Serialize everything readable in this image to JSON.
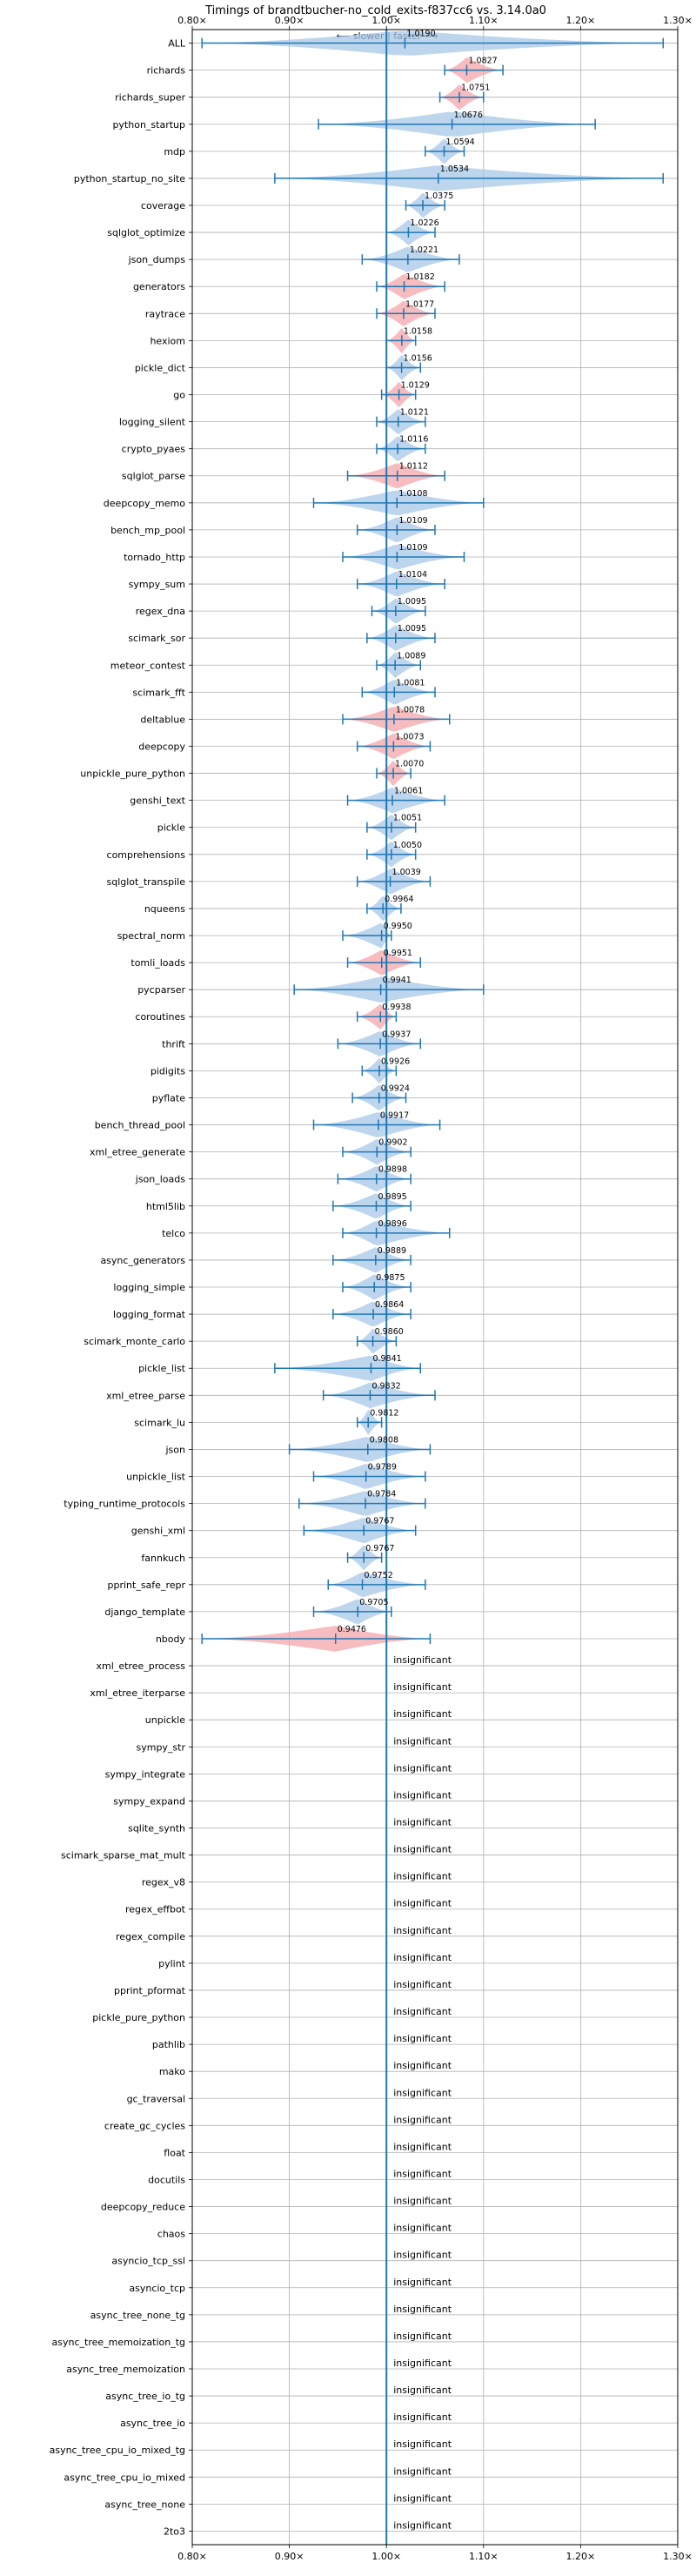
{
  "chart_data": {
    "type": "violin",
    "title": "Timings of brandtbucher-no_cold_exits-f837cc6 vs. 3.14.0a0",
    "direction_label": "⟵ slower | faster ⟶",
    "xlim": [
      0.8,
      1.3
    ],
    "xticks": [
      0.8,
      0.9,
      1.0,
      1.1,
      1.2,
      1.3
    ],
    "xtick_labels": [
      "0.80×",
      "0.90×",
      "1.00×",
      "1.10×",
      "1.20×",
      "1.30×"
    ],
    "reference_line": 1.0,
    "grid": true,
    "colors": {
      "faster": "#a7c7e7",
      "slower": "#f4a6a9",
      "line": "#1f77b4"
    },
    "insignificant_label": "insignificant",
    "benchmarks": [
      {
        "name": "ALL",
        "value": 1.019,
        "label": "1.0190",
        "low": 0.81,
        "high": 1.285,
        "color": "faster"
      },
      {
        "name": "richards",
        "value": 1.0827,
        "label": "1.0827",
        "low": 1.06,
        "high": 1.12,
        "color": "slower"
      },
      {
        "name": "richards_super",
        "value": 1.0751,
        "label": "1.0751",
        "low": 1.055,
        "high": 1.1,
        "color": "slower"
      },
      {
        "name": "python_startup",
        "value": 1.0676,
        "label": "1.0676",
        "low": 0.93,
        "high": 1.215,
        "color": "faster"
      },
      {
        "name": "mdp",
        "value": 1.0594,
        "label": "1.0594",
        "low": 1.04,
        "high": 1.08,
        "color": "faster"
      },
      {
        "name": "python_startup_no_site",
        "value": 1.0534,
        "label": "1.0534",
        "low": 0.885,
        "high": 1.285,
        "color": "faster"
      },
      {
        "name": "coverage",
        "value": 1.0375,
        "label": "1.0375",
        "low": 1.02,
        "high": 1.06,
        "color": "faster"
      },
      {
        "name": "sqlglot_optimize",
        "value": 1.0226,
        "label": "1.0226",
        "low": 1.0,
        "high": 1.05,
        "color": "faster"
      },
      {
        "name": "json_dumps",
        "value": 1.0221,
        "label": "1.0221",
        "low": 0.975,
        "high": 1.075,
        "color": "faster"
      },
      {
        "name": "generators",
        "value": 1.0182,
        "label": "1.0182",
        "low": 0.99,
        "high": 1.06,
        "color": "slower"
      },
      {
        "name": "raytrace",
        "value": 1.0177,
        "label": "1.0177",
        "low": 0.99,
        "high": 1.05,
        "color": "slower"
      },
      {
        "name": "hexiom",
        "value": 1.0158,
        "label": "1.0158",
        "low": 1.0,
        "high": 1.03,
        "color": "slower"
      },
      {
        "name": "pickle_dict",
        "value": 1.0156,
        "label": "1.0156",
        "low": 1.0,
        "high": 1.035,
        "color": "faster"
      },
      {
        "name": "go",
        "value": 1.0129,
        "label": "1.0129",
        "low": 0.995,
        "high": 1.03,
        "color": "slower"
      },
      {
        "name": "logging_silent",
        "value": 1.0121,
        "label": "1.0121",
        "low": 0.99,
        "high": 1.04,
        "color": "faster"
      },
      {
        "name": "crypto_pyaes",
        "value": 1.0116,
        "label": "1.0116",
        "low": 0.99,
        "high": 1.04,
        "color": "faster"
      },
      {
        "name": "sqlglot_parse",
        "value": 1.0112,
        "label": "1.0112",
        "low": 0.96,
        "high": 1.06,
        "color": "slower"
      },
      {
        "name": "deepcopy_memo",
        "value": 1.0108,
        "label": "1.0108",
        "low": 0.925,
        "high": 1.1,
        "color": "faster"
      },
      {
        "name": "bench_mp_pool",
        "value": 1.0109,
        "label": "1.0109",
        "low": 0.97,
        "high": 1.05,
        "color": "faster"
      },
      {
        "name": "tornado_http",
        "value": 1.0109,
        "label": "1.0109",
        "low": 0.955,
        "high": 1.08,
        "color": "faster"
      },
      {
        "name": "sympy_sum",
        "value": 1.0104,
        "label": "1.0104",
        "low": 0.97,
        "high": 1.06,
        "color": "faster"
      },
      {
        "name": "regex_dna",
        "value": 1.0095,
        "label": "1.0095",
        "low": 0.985,
        "high": 1.04,
        "color": "faster"
      },
      {
        "name": "scimark_sor",
        "value": 1.0095,
        "label": "1.0095",
        "low": 0.98,
        "high": 1.05,
        "color": "faster"
      },
      {
        "name": "meteor_contest",
        "value": 1.0089,
        "label": "1.0089",
        "low": 0.99,
        "high": 1.035,
        "color": "faster"
      },
      {
        "name": "scimark_fft",
        "value": 1.0081,
        "label": "1.0081",
        "low": 0.975,
        "high": 1.05,
        "color": "faster"
      },
      {
        "name": "deltablue",
        "value": 1.0078,
        "label": "1.0078",
        "low": 0.955,
        "high": 1.065,
        "color": "slower"
      },
      {
        "name": "deepcopy",
        "value": 1.0073,
        "label": "1.0073",
        "low": 0.97,
        "high": 1.045,
        "color": "slower"
      },
      {
        "name": "unpickle_pure_python",
        "value": 1.007,
        "label": "1.0070",
        "low": 0.99,
        "high": 1.025,
        "color": "slower"
      },
      {
        "name": "genshi_text",
        "value": 1.0061,
        "label": "1.0061",
        "low": 0.96,
        "high": 1.06,
        "color": "faster"
      },
      {
        "name": "pickle",
        "value": 1.0051,
        "label": "1.0051",
        "low": 0.98,
        "high": 1.03,
        "color": "faster"
      },
      {
        "name": "comprehensions",
        "value": 1.005,
        "label": "1.0050",
        "low": 0.98,
        "high": 1.03,
        "color": "faster"
      },
      {
        "name": "sqlglot_transpile",
        "value": 1.0039,
        "label": "1.0039",
        "low": 0.97,
        "high": 1.045,
        "color": "faster"
      },
      {
        "name": "nqueens",
        "value": 0.9964,
        "label": "0.9964",
        "low": 0.98,
        "high": 1.015,
        "color": "faster"
      },
      {
        "name": "spectral_norm",
        "value": 0.995,
        "label": "0.9950",
        "low": 0.955,
        "high": 1.005,
        "color": "faster"
      },
      {
        "name": "tomli_loads",
        "value": 0.9951,
        "label": "0.9951",
        "low": 0.96,
        "high": 1.035,
        "color": "slower"
      },
      {
        "name": "pycparser",
        "value": 0.9941,
        "label": "0.9941",
        "low": 0.905,
        "high": 1.1,
        "color": "faster"
      },
      {
        "name": "coroutines",
        "value": 0.9938,
        "label": "0.9938",
        "low": 0.97,
        "high": 1.01,
        "color": "slower"
      },
      {
        "name": "thrift",
        "value": 0.9937,
        "label": "0.9937",
        "low": 0.95,
        "high": 1.035,
        "color": "faster"
      },
      {
        "name": "pidigits",
        "value": 0.9926,
        "label": "0.9926",
        "low": 0.975,
        "high": 1.01,
        "color": "faster"
      },
      {
        "name": "pyflate",
        "value": 0.9924,
        "label": "0.9924",
        "low": 0.965,
        "high": 1.02,
        "color": "faster"
      },
      {
        "name": "bench_thread_pool",
        "value": 0.9917,
        "label": "0.9917",
        "low": 0.925,
        "high": 1.055,
        "color": "faster"
      },
      {
        "name": "xml_etree_generate",
        "value": 0.9902,
        "label": "0.9902",
        "low": 0.955,
        "high": 1.025,
        "color": "faster"
      },
      {
        "name": "json_loads",
        "value": 0.9898,
        "label": "0.9898",
        "low": 0.95,
        "high": 1.025,
        "color": "faster"
      },
      {
        "name": "html5lib",
        "value": 0.9895,
        "label": "0.9895",
        "low": 0.945,
        "high": 1.025,
        "color": "faster"
      },
      {
        "name": "telco",
        "value": 0.9896,
        "label": "0.9896",
        "low": 0.955,
        "high": 1.065,
        "color": "faster"
      },
      {
        "name": "async_generators",
        "value": 0.9889,
        "label": "0.9889",
        "low": 0.945,
        "high": 1.025,
        "color": "faster"
      },
      {
        "name": "logging_simple",
        "value": 0.9875,
        "label": "0.9875",
        "low": 0.955,
        "high": 1.025,
        "color": "faster"
      },
      {
        "name": "logging_format",
        "value": 0.9864,
        "label": "0.9864",
        "low": 0.945,
        "high": 1.025,
        "color": "faster"
      },
      {
        "name": "scimark_monte_carlo",
        "value": 0.986,
        "label": "0.9860",
        "low": 0.97,
        "high": 1.01,
        "color": "faster"
      },
      {
        "name": "pickle_list",
        "value": 0.9841,
        "label": "0.9841",
        "low": 0.885,
        "high": 1.035,
        "color": "faster"
      },
      {
        "name": "xml_etree_parse",
        "value": 0.9832,
        "label": "0.9832",
        "low": 0.935,
        "high": 1.05,
        "color": "faster"
      },
      {
        "name": "scimark_lu",
        "value": 0.9812,
        "label": "0.9812",
        "low": 0.97,
        "high": 0.995,
        "color": "faster"
      },
      {
        "name": "json",
        "value": 0.9808,
        "label": "0.9808",
        "low": 0.9,
        "high": 1.045,
        "color": "faster"
      },
      {
        "name": "unpickle_list",
        "value": 0.9789,
        "label": "0.9789",
        "low": 0.925,
        "high": 1.04,
        "color": "faster"
      },
      {
        "name": "typing_runtime_protocols",
        "value": 0.9784,
        "label": "0.9784",
        "low": 0.91,
        "high": 1.04,
        "color": "faster"
      },
      {
        "name": "genshi_xml",
        "value": 0.9767,
        "label": "0.9767",
        "low": 0.915,
        "high": 1.03,
        "color": "faster"
      },
      {
        "name": "fannkuch",
        "value": 0.9767,
        "label": "0.9767",
        "low": 0.96,
        "high": 0.995,
        "color": "faster"
      },
      {
        "name": "pprint_safe_repr",
        "value": 0.9752,
        "label": "0.9752",
        "low": 0.94,
        "high": 1.04,
        "color": "faster"
      },
      {
        "name": "django_template",
        "value": 0.9705,
        "label": "0.9705",
        "low": 0.925,
        "high": 1.005,
        "color": "faster"
      },
      {
        "name": "nbody",
        "value": 0.9476,
        "label": "0.9476",
        "low": 0.81,
        "high": 1.045,
        "color": "slower"
      },
      {
        "name": "xml_etree_process",
        "insignificant": true
      },
      {
        "name": "xml_etree_iterparse",
        "insignificant": true
      },
      {
        "name": "unpickle",
        "insignificant": true
      },
      {
        "name": "sympy_str",
        "insignificant": true
      },
      {
        "name": "sympy_integrate",
        "insignificant": true
      },
      {
        "name": "sympy_expand",
        "insignificant": true
      },
      {
        "name": "sqlite_synth",
        "insignificant": true
      },
      {
        "name": "scimark_sparse_mat_mult",
        "insignificant": true
      },
      {
        "name": "regex_v8",
        "insignificant": true
      },
      {
        "name": "regex_effbot",
        "insignificant": true
      },
      {
        "name": "regex_compile",
        "insignificant": true
      },
      {
        "name": "pylint",
        "insignificant": true
      },
      {
        "name": "pprint_pformat",
        "insignificant": true
      },
      {
        "name": "pickle_pure_python",
        "insignificant": true
      },
      {
        "name": "pathlib",
        "insignificant": true
      },
      {
        "name": "mako",
        "insignificant": true
      },
      {
        "name": "gc_traversal",
        "insignificant": true
      },
      {
        "name": "create_gc_cycles",
        "insignificant": true
      },
      {
        "name": "float",
        "insignificant": true
      },
      {
        "name": "docutils",
        "insignificant": true
      },
      {
        "name": "deepcopy_reduce",
        "insignificant": true
      },
      {
        "name": "chaos",
        "insignificant": true
      },
      {
        "name": "asyncio_tcp_ssl",
        "insignificant": true
      },
      {
        "name": "asyncio_tcp",
        "insignificant": true
      },
      {
        "name": "async_tree_none_tg",
        "insignificant": true
      },
      {
        "name": "async_tree_memoization_tg",
        "insignificant": true
      },
      {
        "name": "async_tree_memoization",
        "insignificant": true
      },
      {
        "name": "async_tree_io_tg",
        "insignificant": true
      },
      {
        "name": "async_tree_io",
        "insignificant": true
      },
      {
        "name": "async_tree_cpu_io_mixed_tg",
        "insignificant": true
      },
      {
        "name": "async_tree_cpu_io_mixed",
        "insignificant": true
      },
      {
        "name": "async_tree_none",
        "insignificant": true
      },
      {
        "name": "2to3",
        "insignificant": true
      }
    ]
  }
}
